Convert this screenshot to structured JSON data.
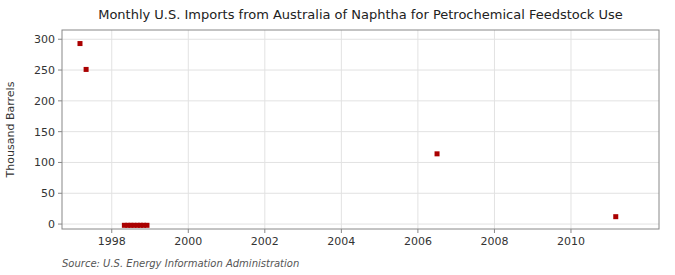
{
  "chart_data": {
    "type": "scatter",
    "title": "Monthly U.S. Imports from Australia of Naphtha for Petrochemical Feedstock Use",
    "ylabel": "Thousand Barrels",
    "annotation": "Source: U.S. Energy Information Administration",
    "x": [
      1997.17,
      1997.33,
      1998.33,
      1998.42,
      1998.5,
      1998.58,
      1998.67,
      1998.75,
      1998.83,
      1998.92,
      2006.5,
      2011.17
    ],
    "values": [
      293,
      251,
      -2,
      -2,
      -2,
      -2,
      -2,
      -2,
      -2,
      -2,
      114,
      12
    ],
    "color": "#AA0000",
    "marker": "square",
    "xlim": [
      1996.7,
      2012.3
    ],
    "ylim": [
      -8,
      315
    ],
    "xticks": [
      1998,
      2000,
      2002,
      2004,
      2006,
      2008,
      2010
    ],
    "yticks": [
      0,
      50,
      100,
      150,
      200,
      250,
      300
    ],
    "grid": true
  }
}
